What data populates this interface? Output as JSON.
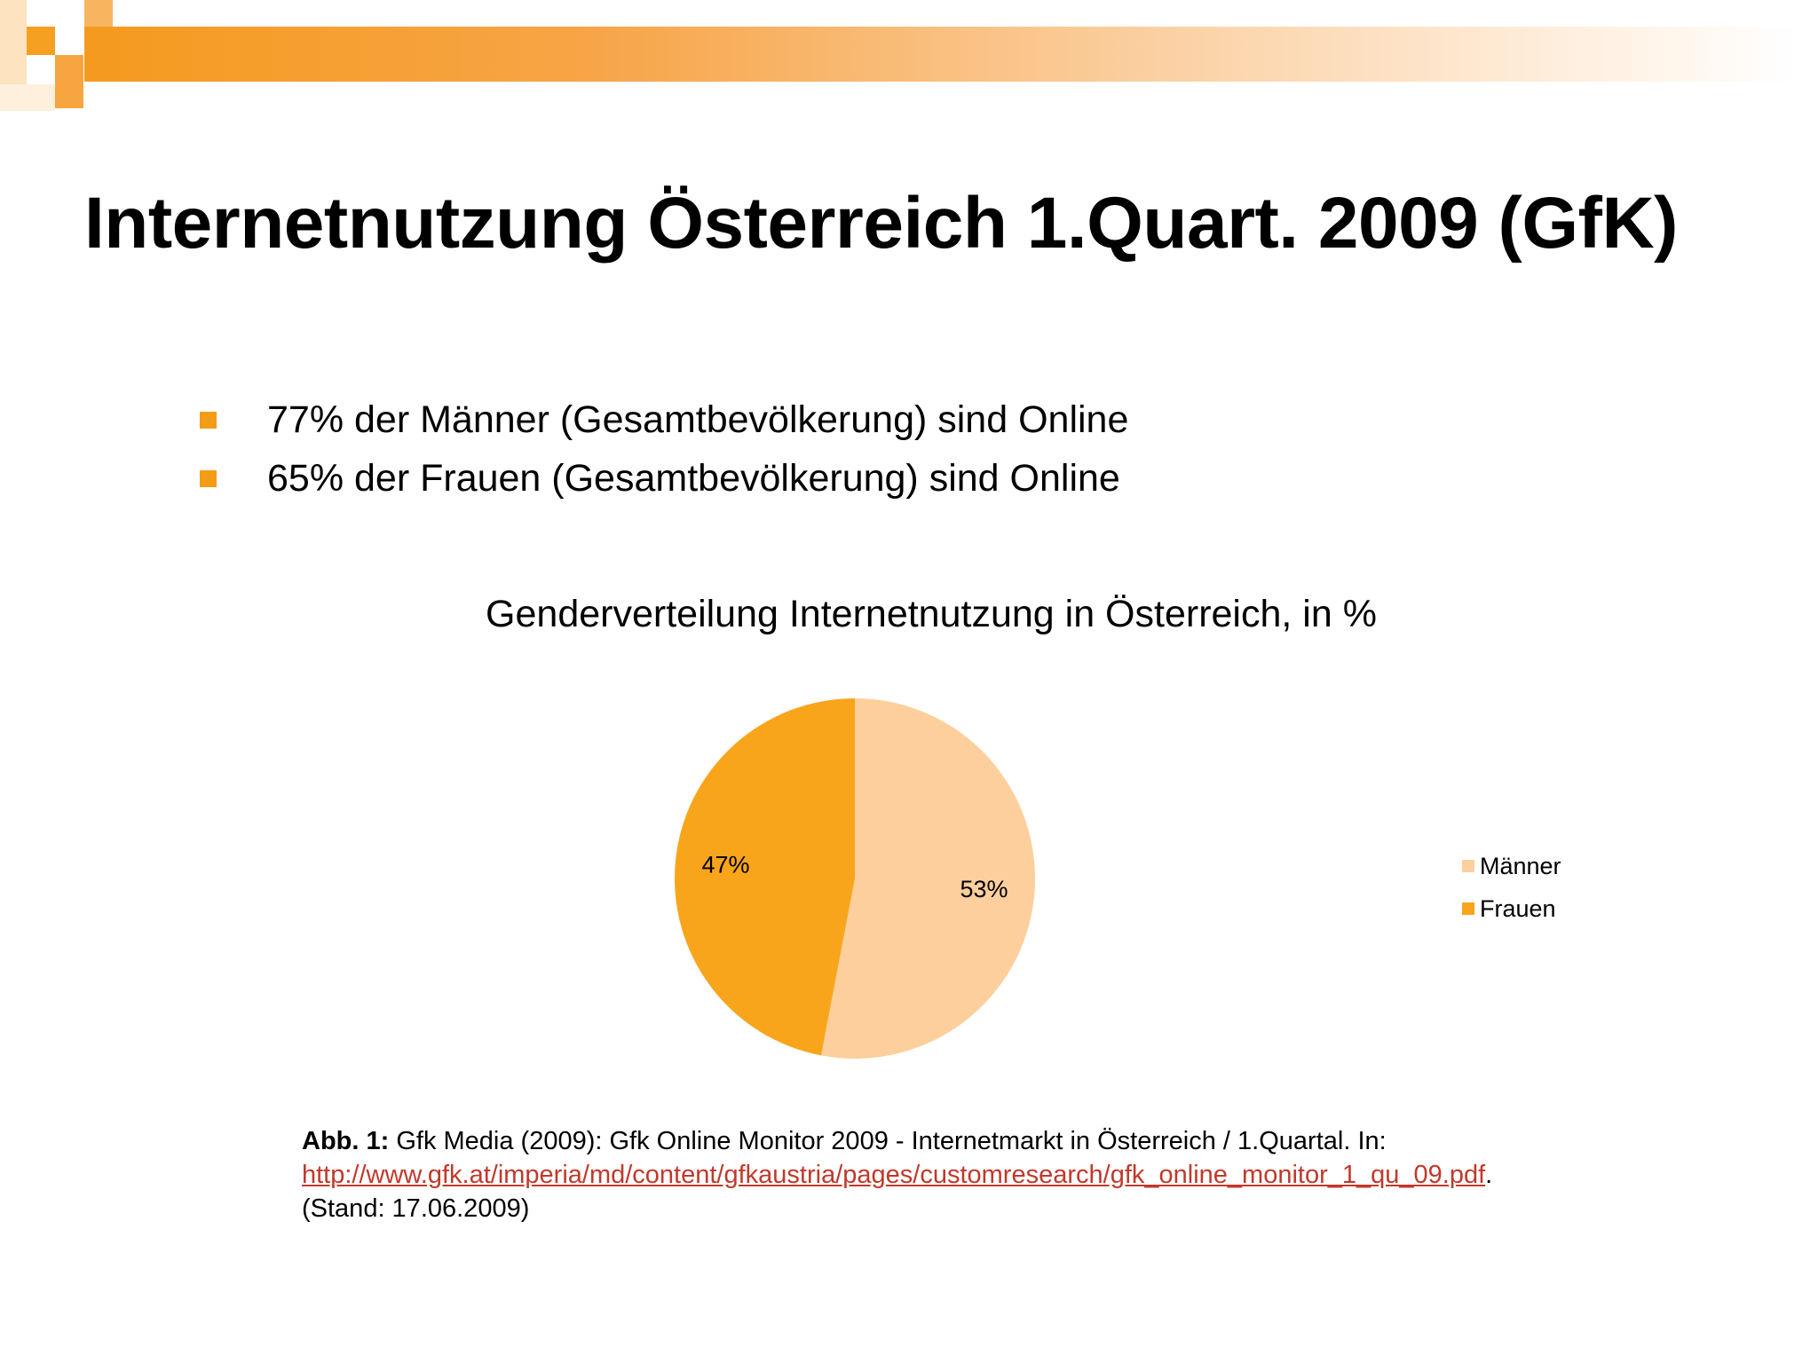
{
  "slide": {
    "title": "Internetnutzung Österreich 1.Quart. 2009 (GfK)",
    "bullets": [
      "77% der Männer (Gesamtbevölkerung) sind Online",
      "65% der Frauen  (Gesamtbevölkerung) sind Online"
    ],
    "accent_color": "#f39c16"
  },
  "chart_data": {
    "type": "pie",
    "title": "Genderverteilung Internetnutzung in Österreich, in %",
    "slices": [
      {
        "label": "Männer",
        "value": 53,
        "display": "53%",
        "color": "#fccf9c"
      },
      {
        "label": "Frauen",
        "value": 47,
        "display": "47%",
        "color": "#f9a51c"
      }
    ],
    "start": "12 o'clock",
    "direction": "clockwise",
    "legend_position": "right"
  },
  "caption": {
    "label": "Abb. 1:",
    "text": " Gfk Media (2009):  Gfk Online Monitor 2009 -  Internetmarkt in Österreich / 1.Quartal.  In:",
    "link": "http://www.gfk.at/imperia/md/content/gfkaustria/pages/customresearch/gfk_online_monitor_1_qu_09.pdf",
    "after_link": ".",
    "stand": "(Stand: 17.06.2009)"
  }
}
